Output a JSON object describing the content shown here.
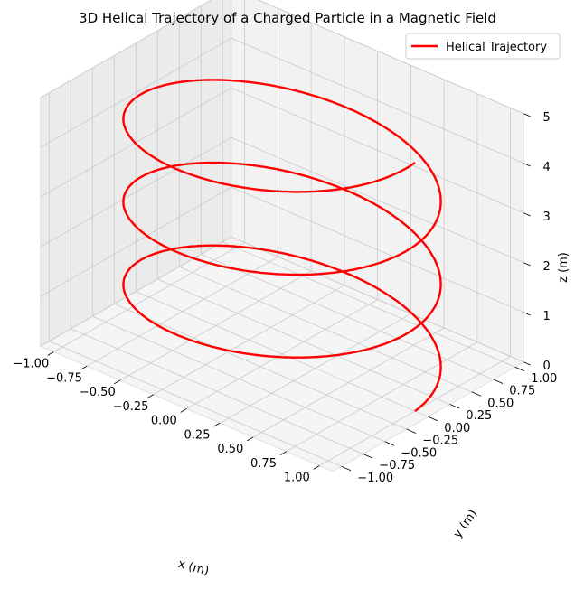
{
  "chart_data": {
    "type": "line",
    "projection": "3d",
    "title": "3D Helical Trajectory of a Charged Particle in a Magnetic Field",
    "xlabel": "x (m)",
    "ylabel": "y (m)",
    "zlabel": "z (m)",
    "xlim": [
      -1.1,
      1.1
    ],
    "ylim": [
      -1.1,
      1.1
    ],
    "zlim": [
      0,
      5
    ],
    "x_ticks": [
      "−1.00",
      "−0.75",
      "−0.50",
      "−0.25",
      "0.00",
      "0.25",
      "0.50",
      "0.75",
      "1.00"
    ],
    "y_ticks": [
      "−1.00",
      "−0.75",
      "−0.50",
      "−0.25",
      "0.00",
      "0.25",
      "0.50",
      "0.75",
      "1.00"
    ],
    "z_ticks": [
      "0",
      "1",
      "2",
      "3",
      "4",
      "5"
    ],
    "grid": true,
    "legend_position": "top-right",
    "series": [
      {
        "name": "Helical Trajectory",
        "color": "#ff0000",
        "parametric": {
          "x": "cos(t)",
          "y": "sin(t)",
          "z": "t / (2π) × 5/3",
          "t_range": [
            0,
            "6π"
          ],
          "radius": 1.0,
          "turns": 3,
          "z_end": 5.0
        }
      }
    ]
  },
  "colors": {
    "pane_back": "#f2f2f2",
    "pane_side": "#ebebeb",
    "pane_floor": "#f5f5f5",
    "grid": "#c9c9c9",
    "trajectory": "#ff0000"
  }
}
